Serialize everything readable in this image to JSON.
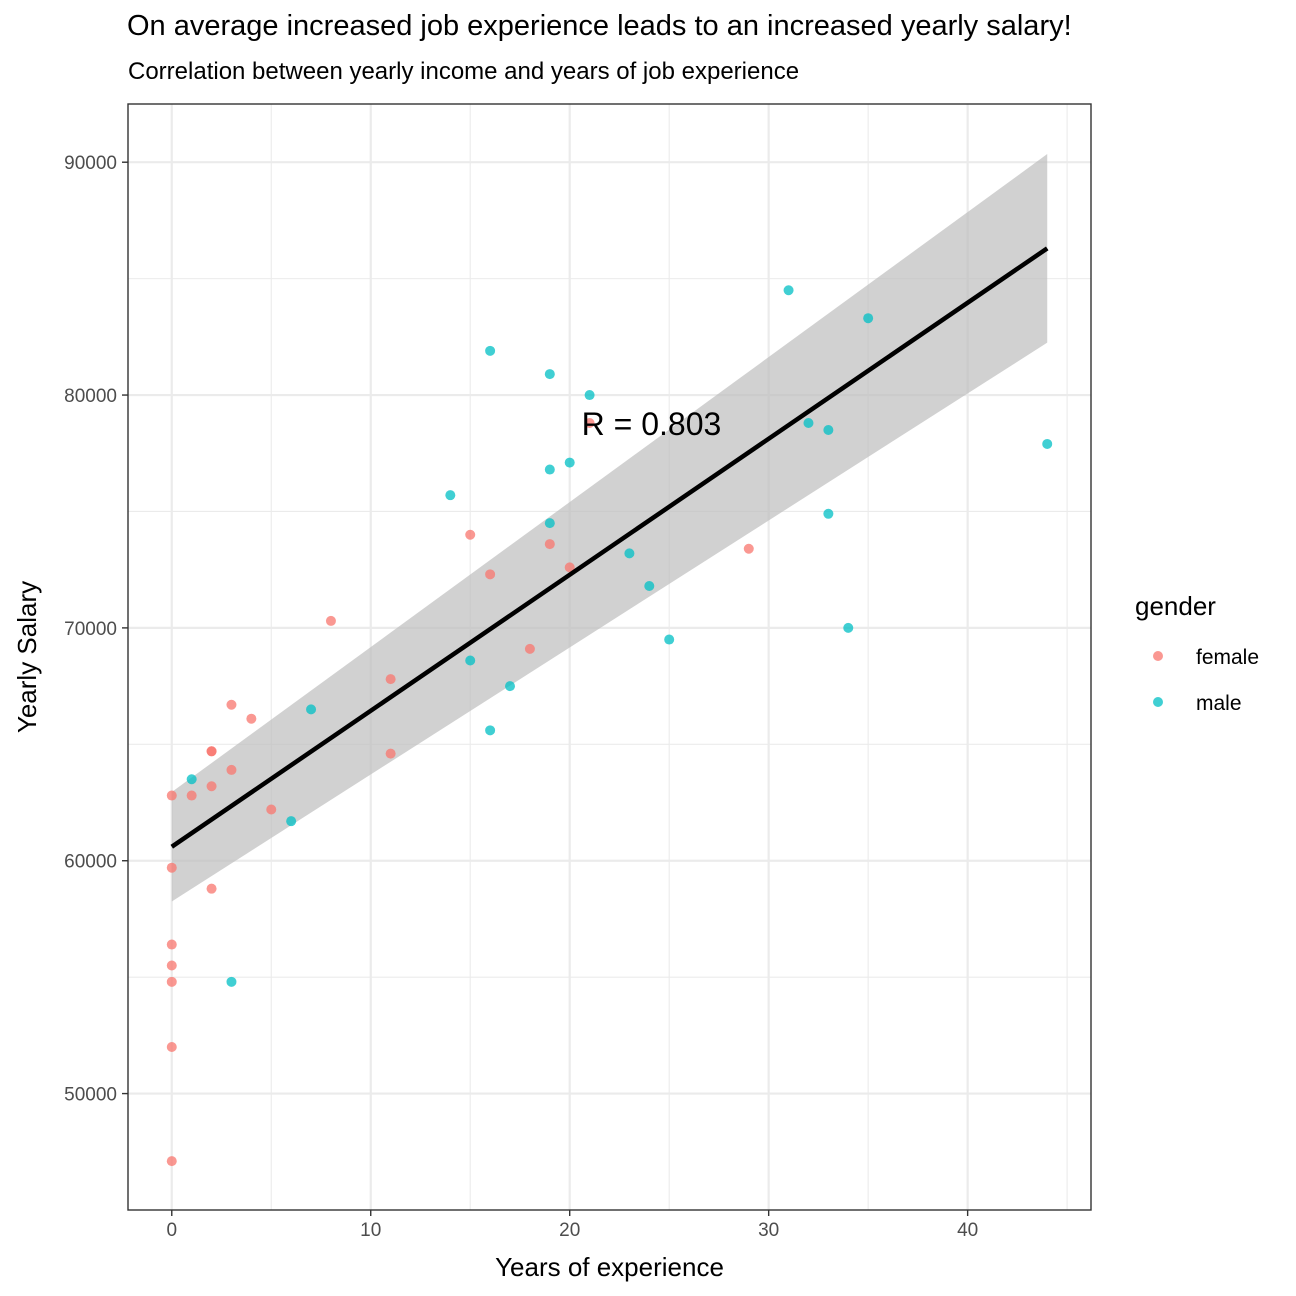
{
  "chart_data": {
    "type": "scatter",
    "title": "On average increased job experience leads to an increased yearly salary!",
    "subtitle": "Correlation between yearly income and years of job experience",
    "xlabel": "Years of experience",
    "ylabel": "Yearly Salary",
    "xlim": [
      -2.2,
      46.2
    ],
    "ylim": [
      45000,
      92500
    ],
    "x_ticks": [
      0,
      10,
      20,
      30,
      40
    ],
    "y_ticks": [
      50000,
      60000,
      70000,
      80000,
      90000
    ],
    "grid": true,
    "legend": {
      "title": "gender",
      "position": "right",
      "entries": [
        "female",
        "male"
      ]
    },
    "colors": {
      "female": "#F8766D",
      "male": "#00BFC4",
      "fit_line": "#000000",
      "ribbon": "#BEBEBE",
      "grid": "#EBEBEB",
      "border": "#333333"
    },
    "annotation": {
      "text": "R =  0.803",
      "x": 20.6,
      "y": 78800
    },
    "fit": {
      "method": "lm",
      "x": [
        0,
        44
      ],
      "y": [
        60600,
        86300
      ],
      "ci_lower": [
        58250,
        82250
      ],
      "ci_upper": [
        62950,
        90350
      ]
    },
    "series": [
      {
        "name": "female",
        "points": [
          [
            0,
            62800
          ],
          [
            0,
            59700
          ],
          [
            0,
            56400
          ],
          [
            0,
            55500
          ],
          [
            0,
            54800
          ],
          [
            0,
            52000
          ],
          [
            0,
            47100
          ],
          [
            1,
            62800
          ],
          [
            2,
            64700
          ],
          [
            2,
            64700
          ],
          [
            2,
            63200
          ],
          [
            2,
            58800
          ],
          [
            3,
            66700
          ],
          [
            3,
            63900
          ],
          [
            4,
            66100
          ],
          [
            5,
            62200
          ],
          [
            8,
            70300
          ],
          [
            11,
            67800
          ],
          [
            11,
            64600
          ],
          [
            15,
            74000
          ],
          [
            16,
            72300
          ],
          [
            18,
            69100
          ],
          [
            19,
            73600
          ],
          [
            20,
            72600
          ],
          [
            21,
            78800
          ],
          [
            29,
            73400
          ]
        ]
      },
      {
        "name": "male",
        "points": [
          [
            1,
            63500
          ],
          [
            3,
            54800
          ],
          [
            6,
            61700
          ],
          [
            7,
            66500
          ],
          [
            14,
            75700
          ],
          [
            15,
            68600
          ],
          [
            16,
            81900
          ],
          [
            16,
            65600
          ],
          [
            17,
            67500
          ],
          [
            19,
            80900
          ],
          [
            19,
            76800
          ],
          [
            19,
            74500
          ],
          [
            20,
            77100
          ],
          [
            21,
            80000
          ],
          [
            23,
            73200
          ],
          [
            24,
            71800
          ],
          [
            25,
            69500
          ],
          [
            31,
            84500
          ],
          [
            32,
            78800
          ],
          [
            33,
            78500
          ],
          [
            33,
            74900
          ],
          [
            34,
            70000
          ],
          [
            35,
            83300
          ],
          [
            44,
            77900
          ]
        ]
      }
    ]
  }
}
